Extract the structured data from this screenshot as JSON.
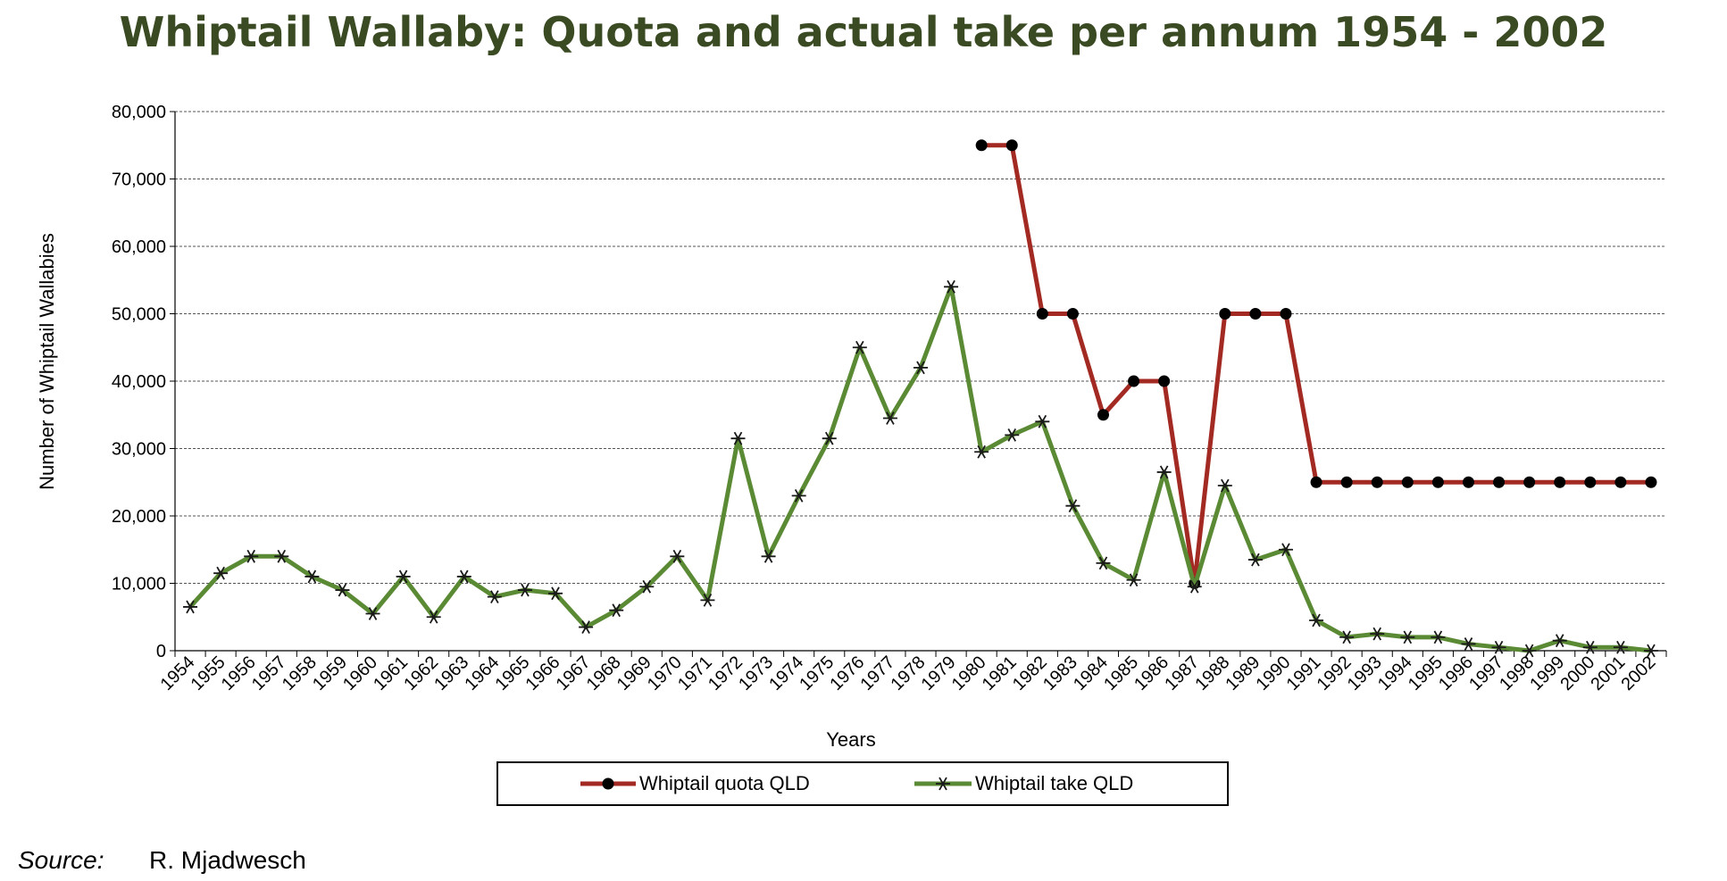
{
  "chart_data": {
    "type": "line",
    "title": "Whiptail Wallaby: Quota and actual take per annum  1954 - 2002",
    "xlabel": "Years",
    "ylabel": "Number  of Whiptail Wallabies",
    "ylim": [
      0,
      80000
    ],
    "y_ticks": [
      "0",
      "10,000",
      "20,000",
      "30,000",
      "40,000",
      "50,000",
      "60,000",
      "70,000",
      "80,000"
    ],
    "y_tick_values": [
      0,
      10000,
      20000,
      30000,
      40000,
      50000,
      60000,
      70000,
      80000
    ],
    "grid": "horizontal dashed",
    "legend_position": "bottom",
    "categories": [
      "1954",
      "1955",
      "1956",
      "1957",
      "1958",
      "1959",
      "1960",
      "1961",
      "1962",
      "1963",
      "1964",
      "1965",
      "1966",
      "1967",
      "1968",
      "1969",
      "1970",
      "1971",
      "1972",
      "1973",
      "1974",
      "1975",
      "1976",
      "1977",
      "1978",
      "1979",
      "1980",
      "1981",
      "1982",
      "1983",
      "1984",
      "1985",
      "1986",
      "1987",
      "1988",
      "1989",
      "1990",
      "1991",
      "1992",
      "1993",
      "1994",
      "1995",
      "1996",
      "1997",
      "1998",
      "1999",
      "2000",
      "2001",
      "2002"
    ],
    "series": [
      {
        "name": "Whiptail quota QLD",
        "color": "#a32a22",
        "marker": "circle",
        "values": [
          null,
          null,
          null,
          null,
          null,
          null,
          null,
          null,
          null,
          null,
          null,
          null,
          null,
          null,
          null,
          null,
          null,
          null,
          null,
          null,
          null,
          null,
          null,
          null,
          null,
          null,
          75000,
          75000,
          50000,
          50000,
          35000,
          40000,
          40000,
          10000,
          50000,
          50000,
          50000,
          25000,
          25000,
          25000,
          25000,
          25000,
          25000,
          25000,
          25000,
          25000,
          25000,
          25000,
          25000
        ]
      },
      {
        "name": "Whiptail take QLD",
        "color": "#5b8a35",
        "marker": "star",
        "values": [
          6500,
          11500,
          14000,
          14000,
          11000,
          9000,
          5500,
          11000,
          5000,
          11000,
          8000,
          9000,
          8500,
          3500,
          6000,
          9500,
          14000,
          7500,
          31500,
          14000,
          23000,
          31500,
          45000,
          34500,
          42000,
          54000,
          29500,
          32000,
          34000,
          21500,
          13000,
          10500,
          26500,
          9500,
          24500,
          13500,
          15000,
          4500,
          2000,
          2500,
          2000,
          2000,
          1000,
          500,
          0,
          1500,
          500,
          500,
          0
        ]
      }
    ]
  },
  "source": {
    "label": "Source:",
    "value": "R. Mjadwesch"
  }
}
